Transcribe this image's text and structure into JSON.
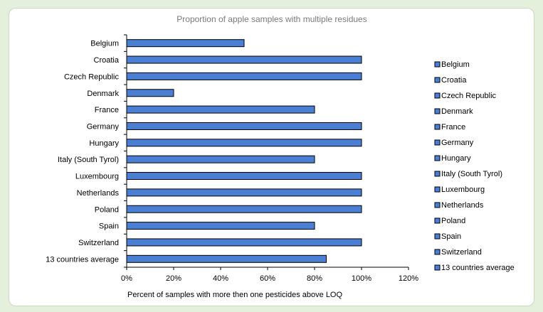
{
  "chart_data": {
    "type": "bar",
    "orientation": "horizontal",
    "title": "Proportion of apple samples with multiple residues",
    "xlabel": "Percent of samples with more then one pesticides above LOQ",
    "ylabel": "",
    "categories": [
      "Belgium",
      "Croatia",
      "Czech Republic",
      "Denmark",
      "France",
      "Germany",
      "Hungary",
      "Italy (South Tyrol)",
      "Luxembourg",
      "Netherlands",
      "Poland",
      "Spain",
      "Switzerland",
      "13 countries average"
    ],
    "values": [
      0.5,
      1.0,
      1.0,
      0.2,
      0.8,
      1.0,
      1.0,
      0.8,
      1.0,
      1.0,
      1.0,
      0.8,
      1.0,
      0.85
    ],
    "xlim": [
      0,
      1.2
    ],
    "xticks": [
      "0%",
      "20%",
      "40%",
      "60%",
      "80%",
      "100%",
      "120%"
    ],
    "grid": false,
    "legend_position": "right",
    "legend": [
      "Belgium",
      "Croatia",
      "Czech Republic",
      "Denmark",
      "France",
      "Germany",
      "Hungary",
      "Italy (South Tyrol)",
      "Luxembourg",
      "Netherlands",
      "Poland",
      "Spain",
      "Switzerland",
      "13 countries average"
    ],
    "bar_color": "#4a7fd4",
    "bar_edge_color": "#000000"
  }
}
